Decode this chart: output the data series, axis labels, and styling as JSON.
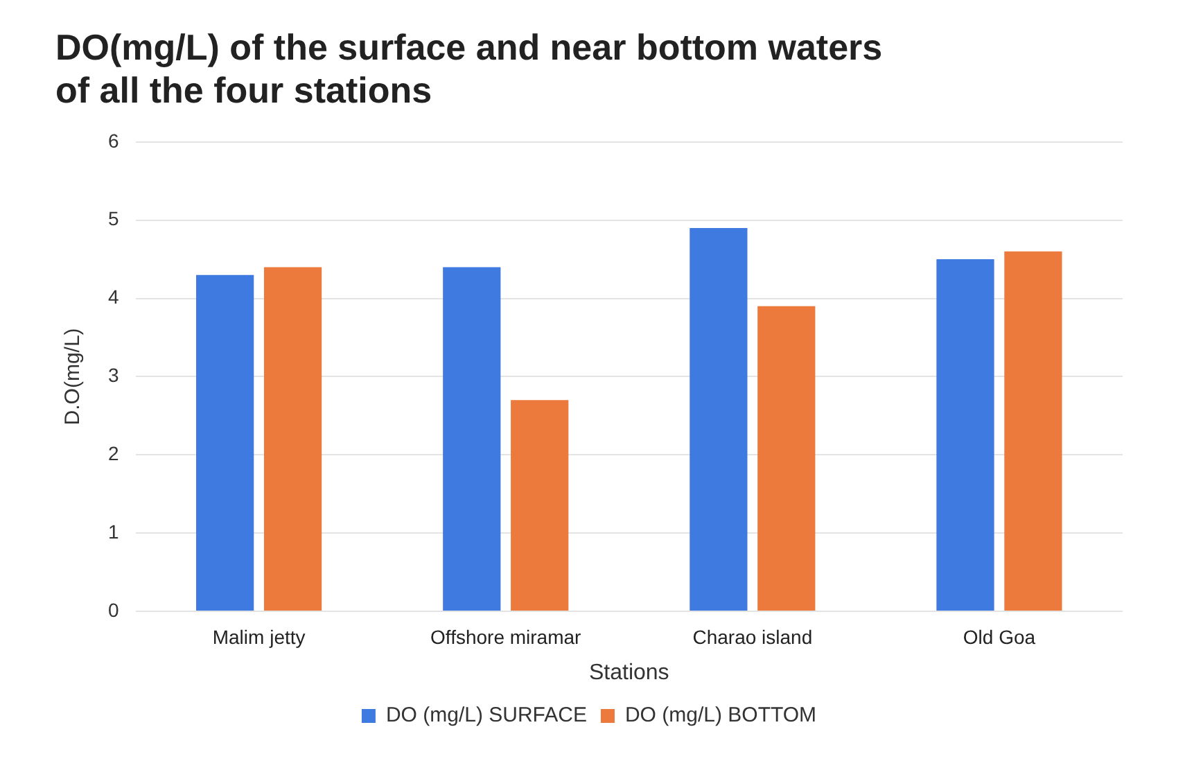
{
  "chart_data": {
    "type": "bar",
    "title": "DO(mg/L) of the surface and near bottom waters of all the four stations",
    "xlabel": "Stations",
    "ylabel": "D.O(mg/L)",
    "categories": [
      "Malim jetty",
      "Offshore miramar",
      "Charao island",
      "Old Goa"
    ],
    "series": [
      {
        "name": "DO (mg/L) SURFACE",
        "color": "#3f7ae0",
        "values": [
          4.3,
          4.4,
          4.9,
          4.5
        ]
      },
      {
        "name": "DO (mg/L) BOTTOM",
        "color": "#ec7a3c",
        "values": [
          4.4,
          2.7,
          3.9,
          4.6
        ]
      }
    ],
    "ylim": [
      0,
      6
    ],
    "yticks": [
      0,
      1,
      2,
      3,
      4,
      5,
      6
    ],
    "grid": "y",
    "legend": "bottom"
  }
}
